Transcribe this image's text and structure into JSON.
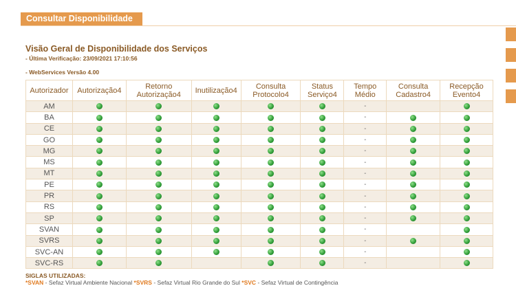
{
  "tab": "Consultar Disponibilidade",
  "title": "Visão Geral de Disponibilidade dos Serviços",
  "last_check": "- Última Verificação: 23/09/2021 17:10:56",
  "version": "- WebServices Versão 4.00",
  "table": {
    "headers": [
      "Autorizador",
      "Autorização4",
      "Retorno Autorização4",
      "Inutilização4",
      "Consulta Protocolo4",
      "Status Serviço4",
      "Tempo Médio",
      "Consulta Cadastro4",
      "Recepção Evento4"
    ],
    "rows": [
      {
        "uf": "AM",
        "status": [
          true,
          true,
          true,
          true,
          true,
          false,
          true
        ],
        "tempo": "-"
      },
      {
        "uf": "BA",
        "status": [
          true,
          true,
          true,
          true,
          true,
          true,
          true
        ],
        "tempo": "-"
      },
      {
        "uf": "CE",
        "status": [
          true,
          true,
          true,
          true,
          true,
          true,
          true
        ],
        "tempo": "-"
      },
      {
        "uf": "GO",
        "status": [
          true,
          true,
          true,
          true,
          true,
          true,
          true
        ],
        "tempo": "-"
      },
      {
        "uf": "MG",
        "status": [
          true,
          true,
          true,
          true,
          true,
          true,
          true
        ],
        "tempo": "-"
      },
      {
        "uf": "MS",
        "status": [
          true,
          true,
          true,
          true,
          true,
          true,
          true
        ],
        "tempo": "-"
      },
      {
        "uf": "MT",
        "status": [
          true,
          true,
          true,
          true,
          true,
          true,
          true
        ],
        "tempo": "-"
      },
      {
        "uf": "PE",
        "status": [
          true,
          true,
          true,
          true,
          true,
          true,
          true
        ],
        "tempo": "-"
      },
      {
        "uf": "PR",
        "status": [
          true,
          true,
          true,
          true,
          true,
          true,
          true
        ],
        "tempo": "-"
      },
      {
        "uf": "RS",
        "status": [
          true,
          true,
          true,
          true,
          true,
          true,
          true
        ],
        "tempo": "-"
      },
      {
        "uf": "SP",
        "status": [
          true,
          true,
          true,
          true,
          true,
          true,
          true
        ],
        "tempo": "-"
      },
      {
        "uf": "SVAN",
        "status": [
          true,
          true,
          true,
          true,
          true,
          false,
          true
        ],
        "tempo": "-"
      },
      {
        "uf": "SVRS",
        "status": [
          true,
          true,
          true,
          true,
          true,
          true,
          true
        ],
        "tempo": "-"
      },
      {
        "uf": "SVC-AN",
        "status": [
          true,
          true,
          true,
          true,
          true,
          false,
          true
        ],
        "tempo": "-"
      },
      {
        "uf": "SVC-RS",
        "status": [
          true,
          true,
          false,
          true,
          true,
          false,
          true
        ],
        "tempo": "-"
      }
    ]
  },
  "siglas": {
    "title": "SIGLAS UTILIZADAS:",
    "items": [
      {
        "code": "*SVAN",
        "desc": "- Sefaz Virtual Ambiente Nacional"
      },
      {
        "code": "*SVRS",
        "desc": "- Sefaz Virtual Rio Grande do Sul"
      },
      {
        "code": "*SVC",
        "desc": "- Sefaz Virtual de Contingência"
      }
    ]
  }
}
